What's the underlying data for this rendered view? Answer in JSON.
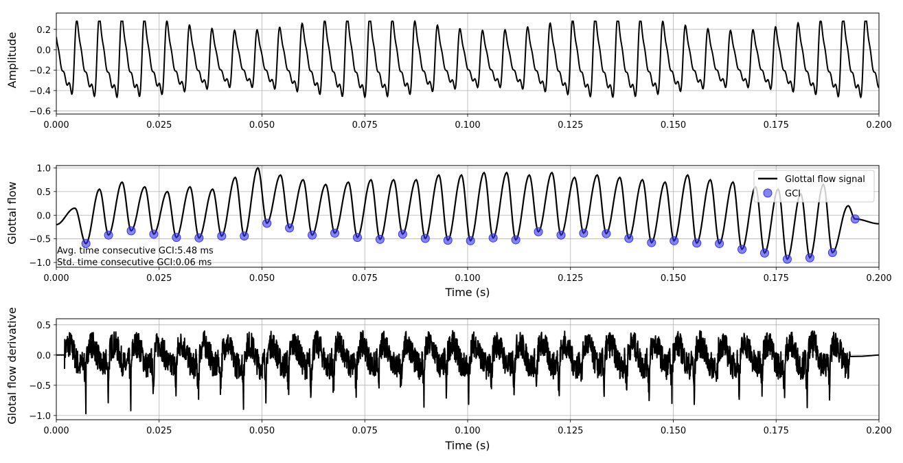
{
  "chart_data": [
    {
      "type": "line",
      "xlabel": "",
      "ylabel": "Amplitude",
      "xlim": [
        0,
        0.2
      ],
      "ylim": [
        -0.63,
        0.36
      ],
      "grid": true,
      "x_ticks": [
        "0.000",
        "0.025",
        "0.050",
        "0.075",
        "0.100",
        "0.125",
        "0.150",
        "0.175",
        "0.200"
      ],
      "y_ticks": [
        {
          "v": 0.2,
          "t": "0.2"
        },
        {
          "v": 0.0,
          "t": "0.0"
        },
        {
          "v": -0.2,
          "t": "−0.2"
        },
        {
          "v": -0.4,
          "t": "−0.4"
        },
        {
          "v": -0.6,
          "t": "−0.6"
        }
      ],
      "series": [
        {
          "line_color": "#000000",
          "x_start": 0.0,
          "x_end": 0.2,
          "period": 0.00548,
          "peak_amplitude": 0.27,
          "trough_amplitude": -0.58
        }
      ]
    },
    {
      "type": "line",
      "xlabel": "Time (s)",
      "ylabel": "Glottal flow",
      "xlim": [
        0,
        0.2
      ],
      "ylim": [
        -1.1,
        1.05
      ],
      "grid": true,
      "legend_position": "top-right",
      "x_ticks": [
        "0.000",
        "0.025",
        "0.050",
        "0.075",
        "0.100",
        "0.125",
        "0.150",
        "0.175",
        "0.200"
      ],
      "y_ticks": [
        {
          "v": 1.0,
          "t": "1.0"
        },
        {
          "v": 0.5,
          "t": "0.5"
        },
        {
          "v": 0.0,
          "t": "0.0"
        },
        {
          "v": -0.5,
          "t": "−0.5"
        },
        {
          "v": -1.0,
          "t": "−1.0"
        }
      ],
      "series": [
        {
          "name": "Glottal flow signal",
          "line_color": "#000000"
        },
        {
          "name": "GCI",
          "marker_color": "#3333ee"
        }
      ],
      "peaks": [
        {
          "x": 0.0045,
          "y": 0.15
        },
        {
          "x": 0.0105,
          "y": 0.55
        },
        {
          "x": 0.016,
          "y": 0.7
        },
        {
          "x": 0.0215,
          "y": 0.6
        },
        {
          "x": 0.027,
          "y": 0.5
        },
        {
          "x": 0.0325,
          "y": 0.6
        },
        {
          "x": 0.038,
          "y": 0.55
        },
        {
          "x": 0.0435,
          "y": 0.8
        },
        {
          "x": 0.049,
          "y": 1.0
        },
        {
          "x": 0.0545,
          "y": 0.85
        },
        {
          "x": 0.06,
          "y": 0.75
        },
        {
          "x": 0.0655,
          "y": 0.65
        },
        {
          "x": 0.071,
          "y": 0.7
        },
        {
          "x": 0.0765,
          "y": 0.75
        },
        {
          "x": 0.082,
          "y": 0.75
        },
        {
          "x": 0.0875,
          "y": 0.75
        },
        {
          "x": 0.093,
          "y": 0.85
        },
        {
          "x": 0.0985,
          "y": 0.85
        },
        {
          "x": 0.104,
          "y": 0.9
        },
        {
          "x": 0.1095,
          "y": 0.9
        },
        {
          "x": 0.115,
          "y": 0.85
        },
        {
          "x": 0.1205,
          "y": 0.9
        },
        {
          "x": 0.126,
          "y": 0.8
        },
        {
          "x": 0.1315,
          "y": 0.85
        },
        {
          "x": 0.137,
          "y": 0.8
        },
        {
          "x": 0.1425,
          "y": 0.75
        },
        {
          "x": 0.148,
          "y": 0.7
        },
        {
          "x": 0.1535,
          "y": 0.85
        },
        {
          "x": 0.159,
          "y": 0.75
        },
        {
          "x": 0.1645,
          "y": 0.7
        },
        {
          "x": 0.17,
          "y": 0.6
        },
        {
          "x": 0.1755,
          "y": 0.55
        },
        {
          "x": 0.181,
          "y": 0.45
        },
        {
          "x": 0.1865,
          "y": 0.65
        },
        {
          "x": 0.1925,
          "y": 0.2
        }
      ],
      "gci_points": [
        {
          "x": 0.0072,
          "y": -0.6
        },
        {
          "x": 0.0127,
          "y": -0.42
        },
        {
          "x": 0.0182,
          "y": -0.33
        },
        {
          "x": 0.0237,
          "y": -0.4
        },
        {
          "x": 0.0292,
          "y": -0.47
        },
        {
          "x": 0.0347,
          "y": -0.48
        },
        {
          "x": 0.0402,
          "y": -0.44
        },
        {
          "x": 0.0457,
          "y": -0.44
        },
        {
          "x": 0.0512,
          "y": -0.17
        },
        {
          "x": 0.0567,
          "y": -0.27
        },
        {
          "x": 0.0622,
          "y": -0.42
        },
        {
          "x": 0.0677,
          "y": -0.38
        },
        {
          "x": 0.0732,
          "y": -0.47
        },
        {
          "x": 0.0787,
          "y": -0.51
        },
        {
          "x": 0.0842,
          "y": -0.4
        },
        {
          "x": 0.0897,
          "y": -0.49
        },
        {
          "x": 0.0952,
          "y": -0.53
        },
        {
          "x": 0.1007,
          "y": -0.54
        },
        {
          "x": 0.1062,
          "y": -0.48
        },
        {
          "x": 0.1117,
          "y": -0.52
        },
        {
          "x": 0.1172,
          "y": -0.35
        },
        {
          "x": 0.1227,
          "y": -0.42
        },
        {
          "x": 0.1282,
          "y": -0.38
        },
        {
          "x": 0.1337,
          "y": -0.39
        },
        {
          "x": 0.1392,
          "y": -0.49
        },
        {
          "x": 0.1447,
          "y": -0.58
        },
        {
          "x": 0.1502,
          "y": -0.54
        },
        {
          "x": 0.1557,
          "y": -0.59
        },
        {
          "x": 0.1612,
          "y": -0.6
        },
        {
          "x": 0.1667,
          "y": -0.72
        },
        {
          "x": 0.1722,
          "y": -0.8
        },
        {
          "x": 0.1777,
          "y": -0.93
        },
        {
          "x": 0.1832,
          "y": -0.9
        },
        {
          "x": 0.1887,
          "y": -0.79
        },
        {
          "x": 0.1942,
          "y": -0.08
        }
      ],
      "annotations": [
        "Avg. time consecutive GCI:5.48 ms",
        "Std. time consecutive GCI:0.06 ms"
      ]
    },
    {
      "type": "line",
      "xlabel": "Time (s)",
      "ylabel": "Glotal flow derivative",
      "xlim": [
        0,
        0.2
      ],
      "ylim": [
        -1.07,
        0.6
      ],
      "grid": true,
      "x_ticks": [
        "0.000",
        "0.025",
        "0.050",
        "0.075",
        "0.100",
        "0.125",
        "0.150",
        "0.175",
        "0.200"
      ],
      "y_ticks": [
        {
          "v": 0.5,
          "t": "0.5"
        },
        {
          "v": 0.0,
          "t": "0.0"
        },
        {
          "v": -0.5,
          "t": "−0.5"
        },
        {
          "v": -1.0,
          "t": "−1.0"
        }
      ],
      "series": [
        {
          "line_color": "#000000",
          "x_start": 0.002,
          "x_end": 0.193,
          "period": 0.00548,
          "max_value": 0.52,
          "min_value": -1.0,
          "flat_value_after_end": 0.0
        }
      ]
    }
  ]
}
